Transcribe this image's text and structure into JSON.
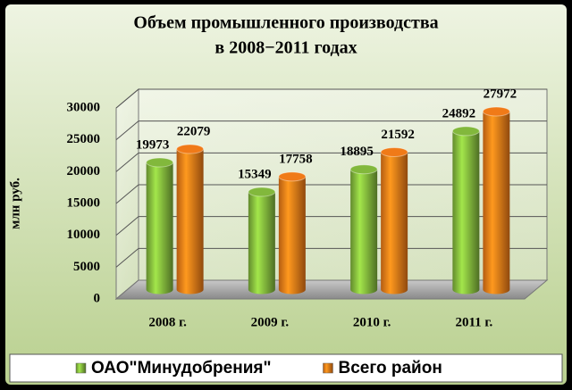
{
  "chart_data": {
    "type": "bar3d",
    "title": [
      "Объем промышленного производства",
      "в 2008−2011 годах"
    ],
    "y_label": "млн руб.",
    "categories": [
      "2008 г.",
      "2009 г.",
      "2010 г.",
      "2011 г."
    ],
    "series": [
      {
        "name": "ОАО\"Минудобрения\"",
        "color": "#82b83c",
        "values": [
          19973,
          15349,
          18895,
          24892
        ]
      },
      {
        "name": "Всего район",
        "color": "#f07a18",
        "values": [
          22079,
          17758,
          21592,
          27972
        ]
      }
    ],
    "ylim": [
      0,
      30000
    ],
    "yticks": [
      0,
      5000,
      10000,
      15000,
      20000,
      25000,
      30000
    ],
    "grid": true,
    "legend": "bottom"
  }
}
